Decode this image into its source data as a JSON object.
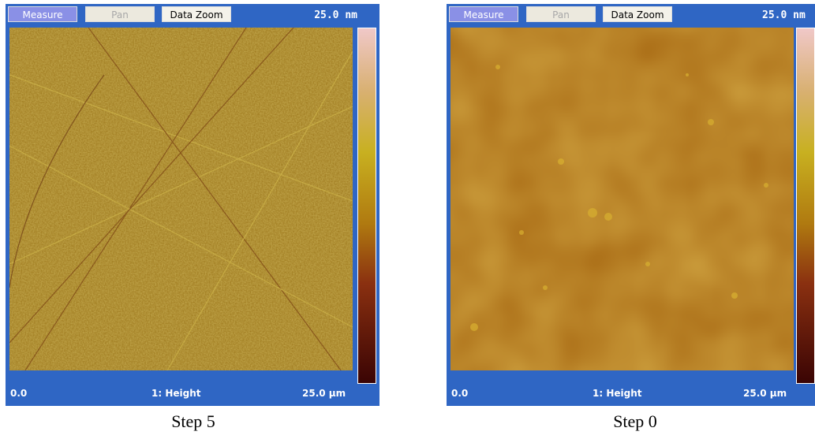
{
  "panels": [
    {
      "buttons": [
        "Measure",
        "Pan",
        "Data Zoom"
      ],
      "scale": "25.0 nm",
      "footer": {
        "left": "0.0",
        "center": "1: Height",
        "right": "25.0 µm"
      },
      "caption": "Step 5"
    },
    {
      "buttons": [
        "Measure",
        "Pan",
        "Data Zoom"
      ],
      "scale": "25.0 nm",
      "footer": {
        "left": "0.0",
        "center": "1: Height",
        "right": "25.0 µm"
      },
      "caption": "Step 0"
    }
  ]
}
